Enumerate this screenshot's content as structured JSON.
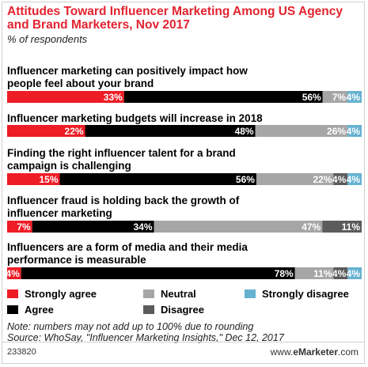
{
  "header": {
    "title": "Attitudes Toward Influencer Marketing Among US Agency and Brand Marketers, Nov 2017",
    "subtitle": "% of respondents"
  },
  "chart_data": {
    "type": "bar",
    "stacked": true,
    "orientation": "horizontal",
    "categories": [
      "Influencer marketing can positively impact how people feel about your brand",
      "Influencer marketing budgets will increase in 2018",
      "Finding the right influencer talent for a brand campaign is challenging",
      "Influencer fraud is holding back the growth of influencer marketing",
      "Influencers are a form of media and their media performance is measurable"
    ],
    "series": [
      {
        "name": "Strongly agree",
        "color": "#ee1c25",
        "values": [
          33,
          22,
          15,
          7,
          4
        ]
      },
      {
        "name": "Agree",
        "color": "#000000",
        "values": [
          56,
          48,
          56,
          34,
          78
        ]
      },
      {
        "name": "Neutral",
        "color": "#a6a6a6",
        "values": [
          7,
          26,
          22,
          47,
          11
        ]
      },
      {
        "name": "Disagree",
        "color": "#5b5b5b",
        "values": [
          0,
          0,
          4,
          11,
          4
        ]
      },
      {
        "name": "Strongly disagree",
        "color": "#66b2d0",
        "values": [
          4,
          4,
          4,
          0,
          4
        ]
      }
    ],
    "value_labels": [
      [
        "33%",
        "56%",
        "7%",
        "",
        "4%"
      ],
      [
        "22%",
        "48%",
        "26%",
        "",
        "4%"
      ],
      [
        "15%",
        "56%",
        "22%",
        "4%",
        "4%"
      ],
      [
        "7%",
        "34%",
        "47%",
        "11%",
        ""
      ],
      [
        "4%",
        "78%",
        "11%",
        "4%",
        "4%"
      ]
    ],
    "xlim": [
      0,
      100
    ],
    "legend_position": "bottom"
  },
  "legend_items": [
    {
      "label": "Strongly agree",
      "color": "#ee1c25"
    },
    {
      "label": "Neutral",
      "color": "#a6a6a6"
    },
    {
      "label": "Strongly disagree",
      "color": "#66b2d0"
    },
    {
      "label": "Agree",
      "color": "#000000"
    },
    {
      "label": "Disagree",
      "color": "#5b5b5b"
    }
  ],
  "note": "Note: numbers may not add up to 100% due to rounding",
  "source": "Source: WhoSay, \"Influencer Marketing Insights,\" Dec 12, 2017",
  "footer": {
    "figure_id": "233820",
    "website": "www.",
    "brand": "eMarketer",
    "domain": ".com"
  }
}
